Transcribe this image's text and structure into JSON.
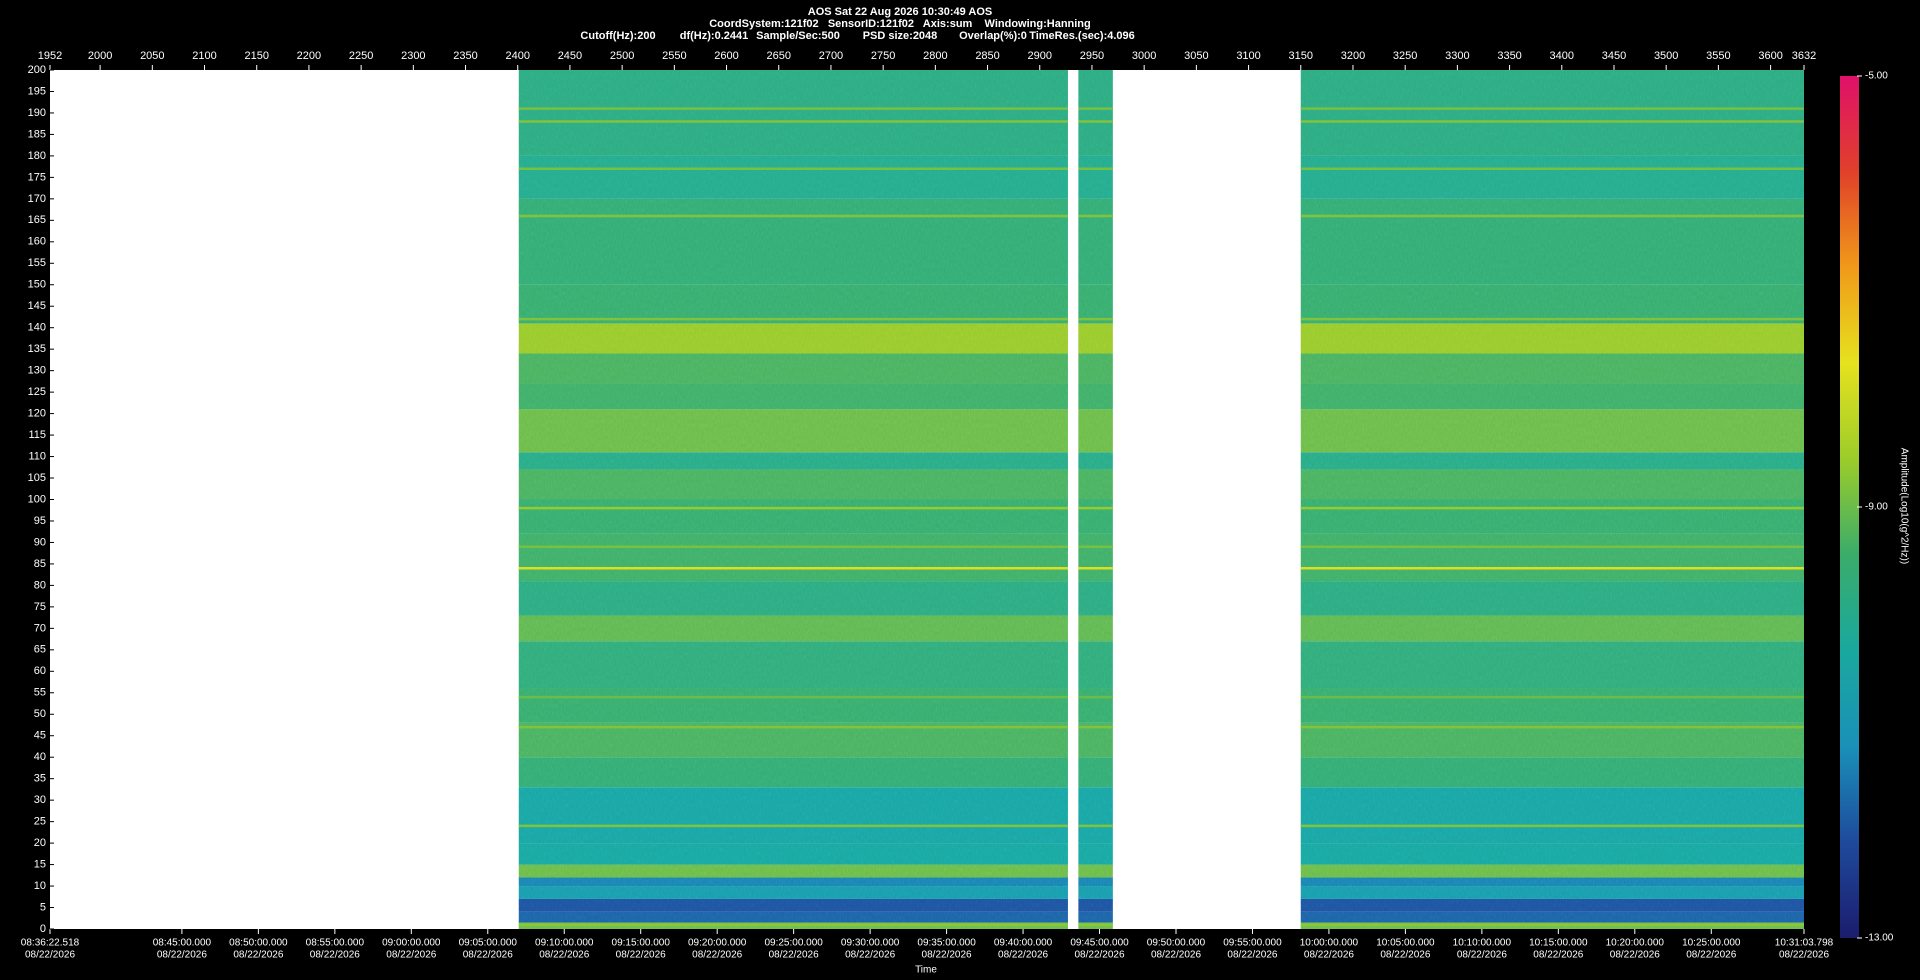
{
  "chart_data": {
    "type": "spectrogram",
    "title": "AOS  Sat 22 Aug 2026 10:30:49  AOS",
    "subtitle": "CoordSystem:121f02   SensorID:121f02   Axis:sum    Windowing:Hanning",
    "settings_line": [
      "Cutoff(Hz):200",
      "df(Hz):0.2441",
      "Sample/Sec:500",
      "PSD size:2048",
      "Overlap(%):0",
      "TimeRes.(sec):4.096"
    ],
    "xlabel": "Time",
    "xlim": [
      1952,
      3632
    ],
    "xticks": [
      1952,
      2000,
      2050,
      2100,
      2150,
      2200,
      2250,
      2300,
      2350,
      2400,
      2450,
      2500,
      2550,
      2600,
      2650,
      2700,
      2750,
      2800,
      2850,
      2900,
      2950,
      3000,
      3050,
      3100,
      3150,
      3200,
      3250,
      3300,
      3350,
      3400,
      3450,
      3500,
      3550,
      3600,
      3632
    ],
    "time_lim": [
      30982.518,
      37863.798
    ],
    "time_ticks": [
      {
        "value": 30982.518,
        "label": "08:36:22.518",
        "date": "08/22/2026"
      },
      {
        "value": 31500,
        "label": "08:45:00.000",
        "date": "08/22/2026"
      },
      {
        "value": 31800,
        "label": "08:50:00.000",
        "date": "08/22/2026"
      },
      {
        "value": 32100,
        "label": "08:55:00.000",
        "date": "08/22/2026"
      },
      {
        "value": 32400,
        "label": "09:00:00.000",
        "date": "08/22/2026"
      },
      {
        "value": 32700,
        "label": "09:05:00.000",
        "date": "08/22/2026"
      },
      {
        "value": 33000,
        "label": "09:10:00.000",
        "date": "08/22/2026"
      },
      {
        "value": 33300,
        "label": "09:15:00.000",
        "date": "08/22/2026"
      },
      {
        "value": 33600,
        "label": "09:20:00.000",
        "date": "08/22/2026"
      },
      {
        "value": 33900,
        "label": "09:25:00.000",
        "date": "08/22/2026"
      },
      {
        "value": 34200,
        "label": "09:30:00.000",
        "date": "08/22/2026"
      },
      {
        "value": 34500,
        "label": "09:35:00.000",
        "date": "08/22/2026"
      },
      {
        "value": 34800,
        "label": "09:40:00.000",
        "date": "08/22/2026"
      },
      {
        "value": 35100,
        "label": "09:45:00.000",
        "date": "08/22/2026"
      },
      {
        "value": 35400,
        "label": "09:50:00.000",
        "date": "08/22/2026"
      },
      {
        "value": 35700,
        "label": "09:55:00.000",
        "date": "08/22/2026"
      },
      {
        "value": 36000,
        "label": "10:00:00.000",
        "date": "08/22/2026"
      },
      {
        "value": 36300,
        "label": "10:05:00.000",
        "date": "08/22/2026"
      },
      {
        "value": 36600,
        "label": "10:10:00.000",
        "date": "08/22/2026"
      },
      {
        "value": 36900,
        "label": "10:15:00.000",
        "date": "08/22/2026"
      },
      {
        "value": 37200,
        "label": "10:20:00.000",
        "date": "08/22/2026"
      },
      {
        "value": 37500,
        "label": "10:25:00.000",
        "date": "08/22/2026"
      },
      {
        "value": 37863.798,
        "label": "10:31:03.798",
        "date": "08/22/2026"
      }
    ],
    "ylim": [
      0,
      200
    ],
    "yticks": [
      0,
      5,
      10,
      15,
      20,
      25,
      30,
      35,
      40,
      45,
      50,
      55,
      60,
      65,
      70,
      75,
      80,
      85,
      90,
      95,
      100,
      105,
      110,
      115,
      120,
      125,
      130,
      135,
      140,
      145,
      150,
      155,
      160,
      165,
      170,
      175,
      180,
      185,
      190,
      195,
      200
    ],
    "colorbar_label": "Amplitude(Log10(g^2/Hz))",
    "clim": [
      -13,
      -5
    ],
    "cticks": [
      {
        "value": -5,
        "label": "-5.00"
      },
      {
        "value": -9,
        "label": "-9.00"
      },
      {
        "value": -13,
        "label": "-13.00"
      }
    ],
    "colormap": [
      "#1c1c6c",
      "#1e4a9c",
      "#1a90b8",
      "#1aa89e",
      "#3aac6a",
      "#9ccc2a",
      "#e6e21e",
      "#f09a1a",
      "#e0402a",
      "#e0106a"
    ],
    "segments": [
      {
        "start": 2401,
        "end": 2927
      },
      {
        "start": 2937,
        "end": 2970
      },
      {
        "start": 3150,
        "end": 3632
      }
    ],
    "bands": [
      {
        "from": 0,
        "to": 1.5,
        "amplitude": -9.0
      },
      {
        "from": 1.5,
        "to": 4,
        "amplitude": -11.8
      },
      {
        "from": 4,
        "to": 7,
        "amplitude": -12.0
      },
      {
        "from": 7,
        "to": 10,
        "amplitude": -10.8
      },
      {
        "from": 10,
        "to": 12,
        "amplitude": -11.4
      },
      {
        "from": 12,
        "to": 15,
        "amplitude": -9.0
      },
      {
        "from": 15,
        "to": 20,
        "amplitude": -10.4
      },
      {
        "from": 20,
        "to": 33,
        "amplitude": -10.5
      },
      {
        "from": 33,
        "to": 40,
        "amplitude": -9.6
      },
      {
        "from": 40,
        "to": 48,
        "amplitude": -9.3
      },
      {
        "from": 48,
        "to": 56,
        "amplitude": -9.5
      },
      {
        "from": 56,
        "to": 67,
        "amplitude": -9.7
      },
      {
        "from": 67,
        "to": 73,
        "amplitude": -9.1
      },
      {
        "from": 73,
        "to": 81,
        "amplitude": -9.8
      },
      {
        "from": 81,
        "to": 92,
        "amplitude": -9.4
      },
      {
        "from": 92,
        "to": 100,
        "amplitude": -9.5
      },
      {
        "from": 100,
        "to": 107,
        "amplitude": -9.3
      },
      {
        "from": 107,
        "to": 111,
        "amplitude": -9.9
      },
      {
        "from": 111,
        "to": 121,
        "amplitude": -9.0
      },
      {
        "from": 121,
        "to": 127,
        "amplitude": -9.4
      },
      {
        "from": 127,
        "to": 134,
        "amplitude": -9.3
      },
      {
        "from": 134,
        "to": 141,
        "amplitude": -8.6
      },
      {
        "from": 141,
        "to": 150,
        "amplitude": -9.5
      },
      {
        "from": 150,
        "to": 170,
        "amplitude": -9.6
      },
      {
        "from": 170,
        "to": 180,
        "amplitude": -10.0
      },
      {
        "from": 180,
        "to": 200,
        "amplitude": -9.8
      }
    ],
    "lines": [
      {
        "freq": 1,
        "amplitude": -8.7
      },
      {
        "freq": 24,
        "amplitude": -8.8
      },
      {
        "freq": 47,
        "amplitude": -8.8
      },
      {
        "freq": 54,
        "amplitude": -9.0
      },
      {
        "freq": 84,
        "amplitude": -7.8
      },
      {
        "freq": 89,
        "amplitude": -8.9
      },
      {
        "freq": 98,
        "amplitude": -8.6
      },
      {
        "freq": 142,
        "amplitude": -8.8
      },
      {
        "freq": 166,
        "amplitude": -8.8
      },
      {
        "freq": 177,
        "amplitude": -8.9
      },
      {
        "freq": 188,
        "amplitude": -8.8
      },
      {
        "freq": 191,
        "amplitude": -8.9
      }
    ]
  }
}
